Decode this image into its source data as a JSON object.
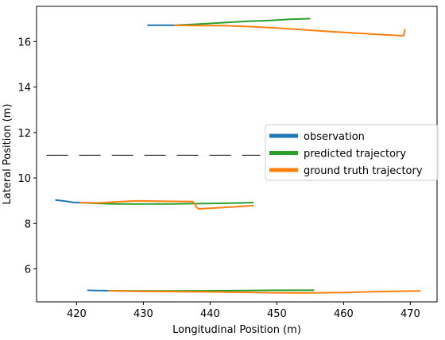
{
  "chart_data": {
    "type": "line",
    "xlabel": "Longitudinal Position (m)",
    "ylabel": "Lateral Position (m)",
    "xlim": [
      414,
      474
    ],
    "ylim": [
      4.55,
      17.55
    ],
    "xticks": [
      420,
      430,
      440,
      450,
      460,
      470
    ],
    "yticks": [
      6,
      8,
      10,
      12,
      14,
      16
    ],
    "grid": false,
    "legend_position": "right",
    "lane_marking": {
      "style": "dashed",
      "color": "#000000",
      "y": 11.0,
      "x": [
        415.5,
        447.5
      ]
    },
    "series": [
      {
        "name": "observation",
        "color": "#1f77b4",
        "tracks": [
          [
            [
              430.6,
              16.72
            ],
            [
              434.6,
              16.72
            ]
          ],
          [
            [
              416.8,
              9.03
            ],
            [
              418.0,
              8.99
            ],
            [
              419.5,
              8.93
            ],
            [
              420.5,
              8.92
            ]
          ],
          [
            [
              421.6,
              5.06
            ],
            [
              423.0,
              5.05
            ],
            [
              424.8,
              5.04
            ]
          ]
        ]
      },
      {
        "name": "predicted trajectory",
        "color": "#2ca02c",
        "tracks": [
          [
            [
              434.6,
              16.72
            ],
            [
              437,
              16.75
            ],
            [
              440,
              16.8
            ],
            [
              443,
              16.85
            ],
            [
              446,
              16.9
            ],
            [
              449,
              16.93
            ],
            [
              452,
              16.98
            ],
            [
              455.0,
              17.01
            ]
          ],
          [
            [
              420.5,
              8.92
            ],
            [
              423,
              8.88
            ],
            [
              426,
              8.86
            ],
            [
              430,
              8.86
            ],
            [
              434,
              8.86
            ],
            [
              437,
              8.87
            ],
            [
              440,
              8.88
            ],
            [
              443,
              8.89
            ],
            [
              446.5,
              8.92
            ]
          ],
          [
            [
              424.8,
              5.04
            ],
            [
              430,
              5.03
            ],
            [
              435,
              5.03
            ],
            [
              440,
              5.04
            ],
            [
              445,
              5.05
            ],
            [
              450,
              5.06
            ],
            [
              455.6,
              5.06
            ]
          ]
        ]
      },
      {
        "name": "ground truth trajectory",
        "color": "#ff7f0e",
        "tracks": [
          [
            [
              434.6,
              16.72
            ],
            [
              438,
              16.7
            ],
            [
              442,
              16.7
            ],
            [
              446,
              16.66
            ],
            [
              450,
              16.6
            ],
            [
              454,
              16.52
            ],
            [
              458,
              16.44
            ],
            [
              462,
              16.37
            ],
            [
              466,
              16.3
            ],
            [
              468.5,
              16.26
            ],
            [
              469.0,
              16.27
            ],
            [
              469.2,
              16.55
            ]
          ],
          [
            [
              420.5,
              8.92
            ],
            [
              423,
              8.9
            ],
            [
              426,
              8.95
            ],
            [
              429,
              9.0
            ],
            [
              432,
              8.98
            ],
            [
              435,
              8.97
            ],
            [
              437.4,
              8.96
            ],
            [
              437.6,
              8.9
            ],
            [
              438.0,
              8.7
            ],
            [
              438.3,
              8.64
            ],
            [
              440,
              8.67
            ],
            [
              443,
              8.72
            ],
            [
              446.5,
              8.79
            ]
          ],
          [
            [
              424.8,
              5.04
            ],
            [
              430,
              5.01
            ],
            [
              435,
              5.0
            ],
            [
              440,
              4.99
            ],
            [
              445,
              4.97
            ],
            [
              450,
              4.95
            ],
            [
              455,
              4.94
            ],
            [
              460,
              4.96
            ],
            [
              465,
              5.0
            ],
            [
              468,
              5.02
            ],
            [
              471.5,
              5.03
            ]
          ]
        ]
      }
    ]
  }
}
